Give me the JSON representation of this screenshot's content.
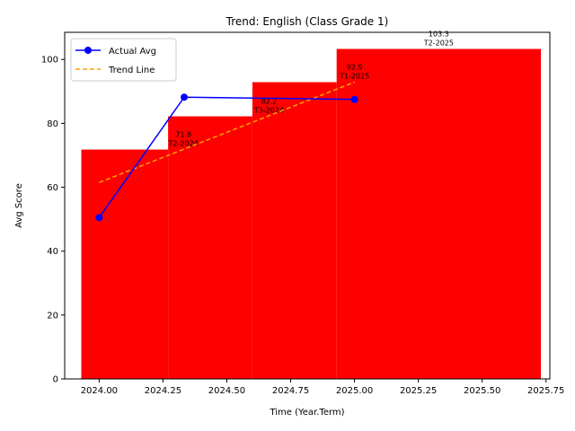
{
  "chart_data": {
    "type": "bar",
    "title": "Trend: English (Class Grade 1)",
    "xlabel": "Time (Year.Term)",
    "ylabel": "Avg Score",
    "xlim": [
      1999.36,
      2075.64
    ],
    "xlim_note": "",
    "x_axis": {
      "min": 2023.865,
      "max": 2025.765,
      "ticks": [
        "2024.00",
        "2024.25",
        "2024.50",
        "2024.75",
        "2025.00",
        "2025.25",
        "2025.50",
        "2025.75"
      ]
    },
    "y_axis": {
      "min": 0,
      "max": 108.5,
      "ticks": [
        0,
        20,
        40,
        60,
        80,
        100
      ]
    },
    "bars": [
      {
        "x_left": 2023.93,
        "x_right": 2024.27,
        "value": 71.8,
        "label_value": "71.8",
        "label_term": "T2-2024",
        "label_x": 2024.33
      },
      {
        "x_left": 2024.27,
        "x_right": 2024.6,
        "value": 82.2,
        "label_value": "82.2",
        "label_term": "T3-2024",
        "label_x": 2024.665
      },
      {
        "x_left": 2024.6,
        "x_right": 2024.93,
        "value": 92.9,
        "label_value": "92.9",
        "label_term": "T1-2025",
        "label_x": 2025.0
      },
      {
        "x_left": 2024.93,
        "x_right": 2025.73,
        "value": 103.3,
        "label_value": "103.3",
        "label_term": "T2-2025",
        "label_x": 2025.33
      }
    ],
    "series": [
      {
        "name": "Actual Avg",
        "style": "line-marker",
        "color": "#0000ff",
        "x": [
          2024.0,
          2024.333,
          2025.0
        ],
        "y": [
          50.5,
          88.2,
          87.5
        ]
      },
      {
        "name": "Trend Line",
        "style": "dashed",
        "color": "#ffa500",
        "x": [
          2024.0,
          2025.0
        ],
        "y": [
          61.5,
          92.9
        ]
      }
    ],
    "bar_color": "#ff0000",
    "grid": false,
    "legend_position": "top-left"
  }
}
